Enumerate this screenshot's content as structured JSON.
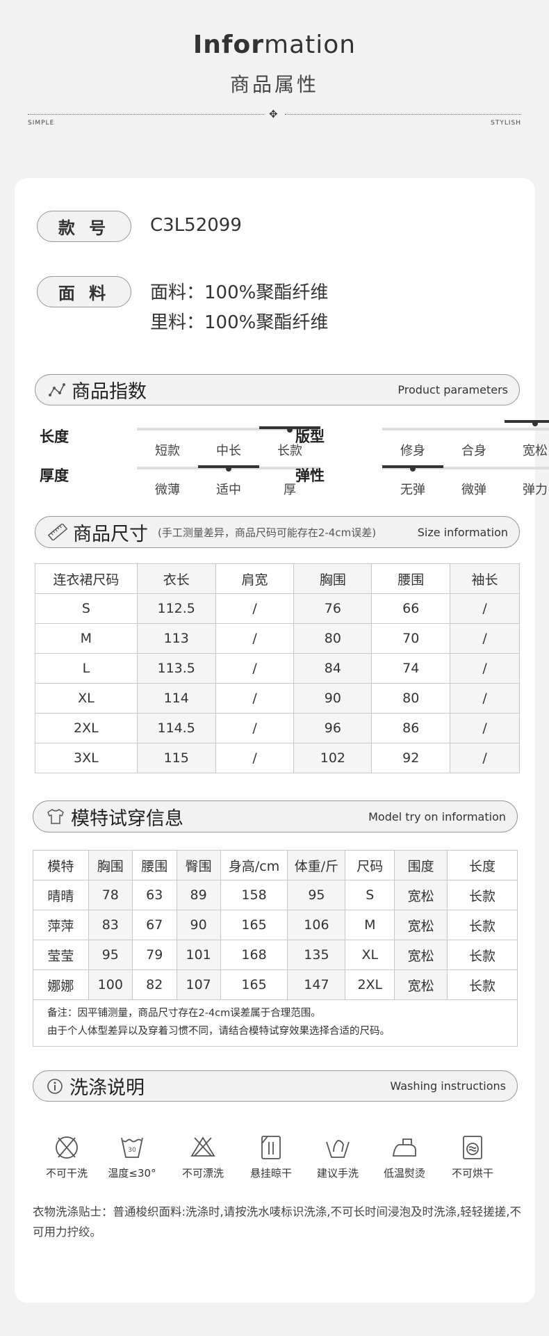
{
  "header": {
    "title_bold": "Infor",
    "title_rest": "mation",
    "subtitle": "商品属性",
    "left_tag": "SIMPLE",
    "right_tag": "STYLISH"
  },
  "style_no": {
    "label": "款 号",
    "value": "C3L52099"
  },
  "fabric": {
    "label": "面 料",
    "lines": [
      "面料：100%聚酯纤维",
      "里料：100%聚酯纤维"
    ]
  },
  "index": {
    "title": "商品指数",
    "en": "Product parameters",
    "icon": "chart-line-icon",
    "rows": [
      {
        "label": "长度",
        "options": [
          "短款",
          "中长",
          "长款"
        ],
        "selected": 2
      },
      {
        "label": "版型",
        "options": [
          "修身",
          "合身",
          "宽松"
        ],
        "selected": 2
      },
      {
        "label": "厚度",
        "options": [
          "微薄",
          "适中",
          "厚"
        ],
        "selected": 1
      },
      {
        "label": "弹性",
        "options": [
          "无弹",
          "微弹",
          "弹力"
        ],
        "selected": 0
      }
    ]
  },
  "size": {
    "title": "商品尺寸",
    "note": "(手工测量差异，商品尺码可能存在2-4cm误差)",
    "en": "Size information",
    "icon": "ruler-icon",
    "headers": [
      "连衣裙尺码",
      "衣长",
      "肩宽",
      "胸围",
      "腰围",
      "袖长"
    ],
    "rows": [
      [
        "S",
        "112.5",
        "/",
        "76",
        "66",
        "/"
      ],
      [
        "M",
        "113",
        "/",
        "80",
        "70",
        "/"
      ],
      [
        "L",
        "113.5",
        "/",
        "84",
        "74",
        "/"
      ],
      [
        "XL",
        "114",
        "/",
        "90",
        "80",
        "/"
      ],
      [
        "2XL",
        "114.5",
        "/",
        "96",
        "86",
        "/"
      ],
      [
        "3XL",
        "115",
        "/",
        "102",
        "92",
        "/"
      ]
    ]
  },
  "model": {
    "title": "模特试穿信息",
    "en": "Model try on information",
    "icon": "tshirt-icon",
    "headers": [
      "模特",
      "胸围",
      "腰围",
      "臀围",
      "身高/cm",
      "体重/斤",
      "尺码",
      "围度",
      "长度"
    ],
    "rows": [
      [
        "晴晴",
        "78",
        "63",
        "89",
        "158",
        "95",
        "S",
        "宽松",
        "长款"
      ],
      [
        "萍萍",
        "83",
        "67",
        "90",
        "165",
        "106",
        "M",
        "宽松",
        "长款"
      ],
      [
        "莹莹",
        "95",
        "79",
        "101",
        "168",
        "135",
        "XL",
        "宽松",
        "长款"
      ],
      [
        "娜娜",
        "100",
        "82",
        "107",
        "165",
        "147",
        "2XL",
        "宽松",
        "长款"
      ]
    ],
    "notes": [
      "备注：因平铺测量，商品尺寸存在2-4cm误差属于合理范围。",
      "由于个人体型差异以及穿着习惯不同，请结合模特试穿效果选择合适的尺码。"
    ]
  },
  "washing": {
    "title": "洗涤说明",
    "en": "Washing instructions",
    "icon": "info-icon",
    "items": [
      {
        "icon": "no-dry-clean-icon",
        "label": "不可干洗"
      },
      {
        "icon": "wash-30-icon",
        "label": "温度≤30°",
        "temp": "30"
      },
      {
        "icon": "no-bleach-icon",
        "label": "不可漂洗"
      },
      {
        "icon": "hang-dry-icon",
        "label": "悬挂晾干"
      },
      {
        "icon": "hand-wash-icon",
        "label": "建议手洗"
      },
      {
        "icon": "low-iron-icon",
        "label": "低温熨烫"
      },
      {
        "icon": "no-tumble-dry-icon",
        "label": "不可烘干"
      }
    ],
    "tips": "衣物洗涤贴士：普通梭织面料:洗涤时,请按洗水唛标识洗涤,不可长时间浸泡及时洗涤,轻轻搓搓,不可用力拧绞。"
  }
}
